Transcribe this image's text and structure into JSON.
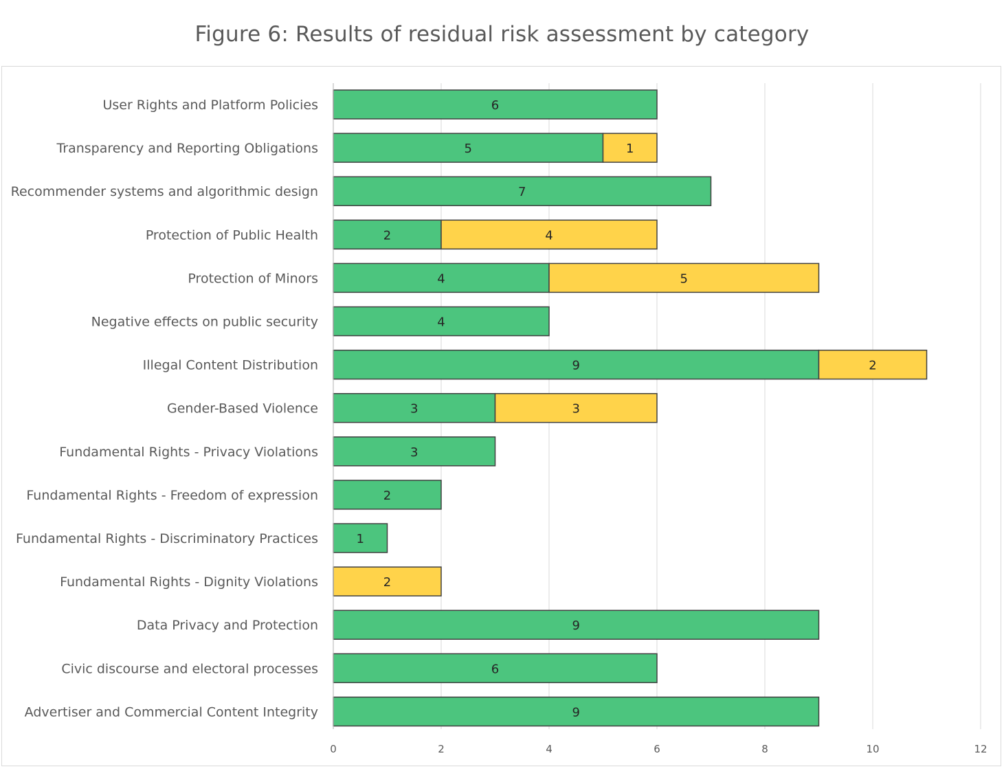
{
  "figure": {
    "title": "Figure 6: Results of residual risk assessment by category"
  },
  "colors": {
    "green": "#4cc57e",
    "yellow": "#ffd34a",
    "bar_border": "#404040",
    "grid": "#d9d9d9",
    "axis": "#bfbfbf"
  },
  "chart_data": {
    "type": "bar",
    "orientation": "horizontal",
    "stacked": true,
    "title": "",
    "xlabel": "",
    "ylabel": "",
    "xlim": [
      0,
      12
    ],
    "x_ticks": [
      0,
      2,
      4,
      6,
      8,
      10,
      12
    ],
    "grid": true,
    "legend": "none",
    "categories": [
      "User Rights and Platform Policies",
      "Transparency and Reporting Obligations",
      "Recommender systems and algorithmic design",
      "Protection of Public Health",
      "Protection of Minors",
      "Negative effects on public security",
      "Illegal Content Distribution",
      "Gender-Based Violence",
      "Fundamental Rights - Privacy Violations",
      "Fundamental Rights - Freedom of expression",
      "Fundamental Rights - Discriminatory Practices",
      "Fundamental Rights - Dignity Violations",
      "Data Privacy and Protection",
      "Civic discourse and electoral processes",
      "Advertiser and Commercial Content Integrity"
    ],
    "series": [
      {
        "color": "#4cc57e",
        "values": [
          6,
          5,
          7,
          2,
          4,
          4,
          9,
          3,
          3,
          2,
          1,
          0,
          9,
          6,
          9
        ]
      },
      {
        "color": "#ffd34a",
        "values": [
          0,
          1,
          0,
          4,
          5,
          0,
          2,
          3,
          0,
          0,
          0,
          2,
          0,
          0,
          0
        ]
      }
    ]
  }
}
